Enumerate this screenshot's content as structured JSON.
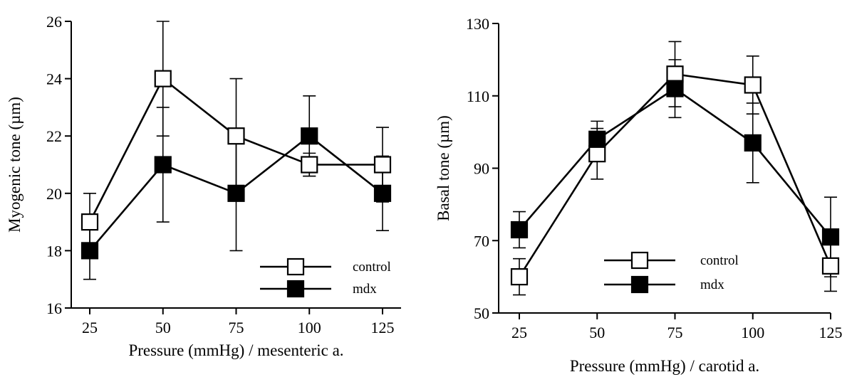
{
  "chart_data": [
    {
      "type": "line",
      "xlabel": "Pressure (mmHg) / mesenteric a.",
      "ylabel": "Myogenic tone (µm)",
      "x": [
        25,
        50,
        75,
        100,
        125
      ],
      "xticks": [
        "25",
        "50",
        "75",
        "100",
        "125"
      ],
      "ylim": [
        16,
        26
      ],
      "yticks": [
        "16",
        "18",
        "20",
        "22",
        "24",
        "26"
      ],
      "grid": false,
      "legend_position": "bottom-right",
      "series": [
        {
          "name": "control",
          "marker": "open-square",
          "values": [
            19,
            24,
            22,
            21,
            21
          ],
          "error": [
            1.0,
            2.0,
            2.0,
            0.4,
            1.3
          ]
        },
        {
          "name": "mdx",
          "marker": "filled-square",
          "values": [
            18,
            21,
            20,
            22,
            20
          ],
          "error": [
            1.0,
            2.0,
            2.0,
            1.4,
            1.3
          ]
        }
      ]
    },
    {
      "type": "line",
      "xlabel": "Pressure (mmHg) / carotid a.",
      "ylabel": "Basal tone (µm)",
      "x": [
        25,
        50,
        75,
        100,
        125
      ],
      "xticks": [
        "25",
        "50",
        "75",
        "100",
        "125"
      ],
      "ylim": [
        50,
        130
      ],
      "yticks": [
        "50",
        "70",
        "90",
        "110",
        "130"
      ],
      "grid": false,
      "legend_position": "bottom-center",
      "series": [
        {
          "name": "control",
          "marker": "open-square",
          "values": [
            60,
            94,
            116,
            113,
            63
          ],
          "error": [
            5,
            7,
            9,
            8,
            7
          ]
        },
        {
          "name": "mdx",
          "marker": "filled-square",
          "values": [
            73,
            98,
            112,
            97,
            71
          ],
          "error": [
            5,
            5,
            8,
            11,
            11
          ]
        }
      ]
    }
  ]
}
